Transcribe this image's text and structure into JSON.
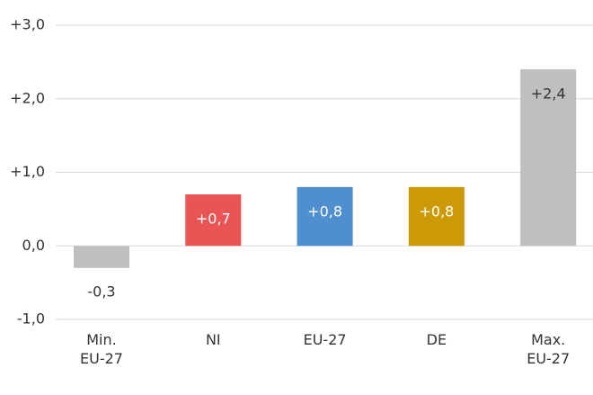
{
  "chart_data": {
    "type": "bar",
    "categories": [
      "Min.\nEU-27",
      "NI",
      "EU-27",
      "DE",
      "Max.\nEU-27"
    ],
    "values": [
      -0.3,
      0.7,
      0.8,
      0.8,
      2.4
    ],
    "value_labels": [
      "-0,3",
      "+0,7",
      "+0,8",
      "+0,8",
      "+2,4"
    ],
    "colors": [
      "#bfbfbf",
      "#e95455",
      "#4f8fcf",
      "#cc9a06",
      "#bfbfbf"
    ],
    "ylim": [
      -1,
      3
    ],
    "yticks": [
      {
        "value": -1,
        "label": "-1,0"
      },
      {
        "value": 0,
        "label": "0,0"
      },
      {
        "value": 1,
        "label": "+1,0"
      },
      {
        "value": 2,
        "label": "+2,0"
      },
      {
        "value": 3,
        "label": "+3,0"
      }
    ],
    "grid": true
  }
}
